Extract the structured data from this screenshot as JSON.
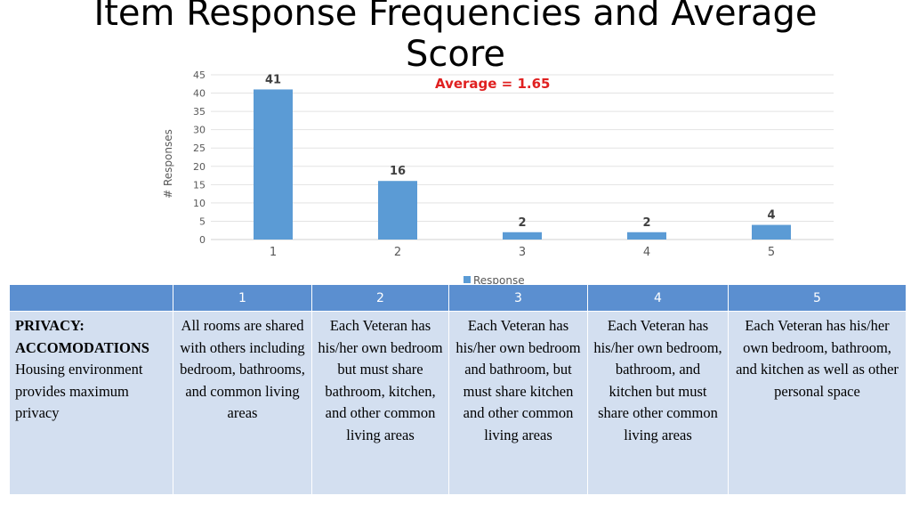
{
  "title_line1": "Item Response Frequencies and Average",
  "title_line2": "Score",
  "average_label": "Average = 1.65",
  "chart_data": {
    "type": "bar",
    "categories": [
      "1",
      "2",
      "3",
      "4",
      "5"
    ],
    "series": [
      {
        "name": "Response",
        "values": [
          41,
          16,
          2,
          2,
          4
        ]
      }
    ],
    "xlabel": "",
    "ylabel": "# Responses",
    "ylim": [
      0,
      45
    ],
    "yticks": [
      0,
      5,
      10,
      15,
      20,
      25,
      30,
      35,
      40,
      45
    ],
    "data_labels": [
      "41",
      "16",
      "2",
      "2",
      "4"
    ],
    "grid": true,
    "legend": "bottom",
    "bar_color": "#5b9bd5",
    "annotation": "Average = 1.65"
  },
  "table": {
    "headers": [
      "",
      "1",
      "2",
      "3",
      "4",
      "5"
    ],
    "item_title": "PRIVACY: ACCOMODATIONS",
    "item_desc": "Housing environment provides maximum privacy",
    "cells": [
      "All rooms are shared with others including bedroom, bathrooms, and common living areas",
      "Each Veteran has his/her own bedroom but must share bathroom, kitchen, and other common living areas",
      "Each Veteran has his/her own bedroom and bathroom, but must share kitchen and other common living areas",
      "Each Veteran has his/her own bedroom, bathroom, and kitchen but must share other common living areas",
      "Each Veteran has his/her own bedroom, bathroom, and kitchen as well as other personal space"
    ]
  },
  "colors": {
    "header_bg": "#5b8fd0",
    "body_bg": "#d3dff0",
    "average_text": "#e02020"
  }
}
